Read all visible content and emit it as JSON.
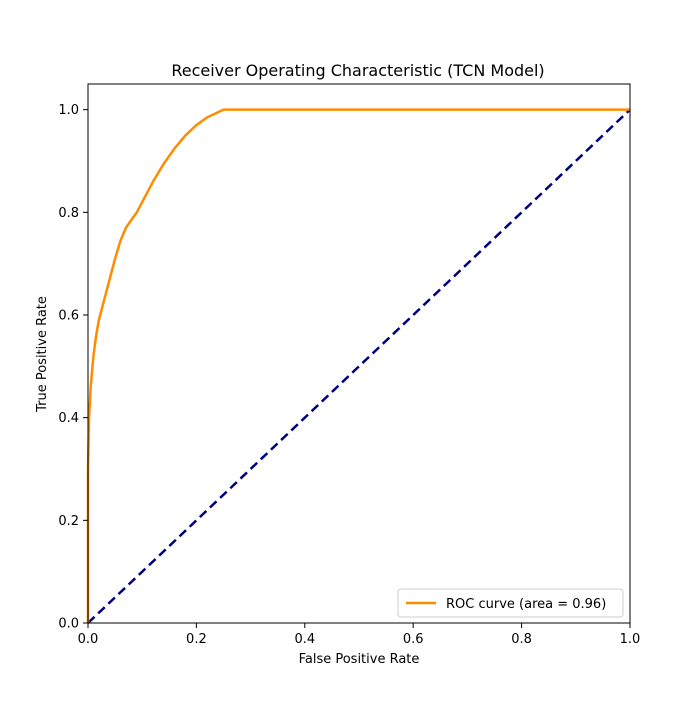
{
  "chart_data": {
    "type": "line",
    "title": "Receiver Operating Characteristic (TCN Model)",
    "xlabel": "False Positive Rate",
    "ylabel": "True Positive Rate",
    "xlim": [
      0.0,
      1.0
    ],
    "ylim": [
      0.0,
      1.05
    ],
    "x_ticks": [
      "0.0",
      "0.2",
      "0.4",
      "0.6",
      "0.8",
      "1.0"
    ],
    "y_ticks": [
      "0.0",
      "0.2",
      "0.4",
      "0.6",
      "0.8",
      "1.0"
    ],
    "grid": false,
    "legend_position": "lower right",
    "series": [
      {
        "name": "ROC curve (area = 0.96)",
        "color": "#ff8c00",
        "style": "solid",
        "x": [
          0.0,
          0.0,
          0.002,
          0.005,
          0.01,
          0.015,
          0.02,
          0.03,
          0.04,
          0.05,
          0.06,
          0.07,
          0.08,
          0.09,
          0.1,
          0.12,
          0.14,
          0.16,
          0.18,
          0.2,
          0.22,
          0.24,
          0.25,
          0.3,
          0.4,
          0.5,
          0.6,
          0.7,
          0.8,
          0.9,
          1.0
        ],
        "y": [
          0.0,
          0.3,
          0.4,
          0.46,
          0.52,
          0.56,
          0.59,
          0.63,
          0.67,
          0.71,
          0.745,
          0.77,
          0.785,
          0.8,
          0.82,
          0.86,
          0.895,
          0.925,
          0.95,
          0.97,
          0.985,
          0.995,
          1.0,
          1.0,
          1.0,
          1.0,
          1.0,
          1.0,
          1.0,
          1.0,
          1.0
        ]
      },
      {
        "name": "",
        "color": "#000080",
        "style": "dashed",
        "x": [
          0.0,
          1.0
        ],
        "y": [
          0.0,
          1.0
        ]
      }
    ]
  }
}
